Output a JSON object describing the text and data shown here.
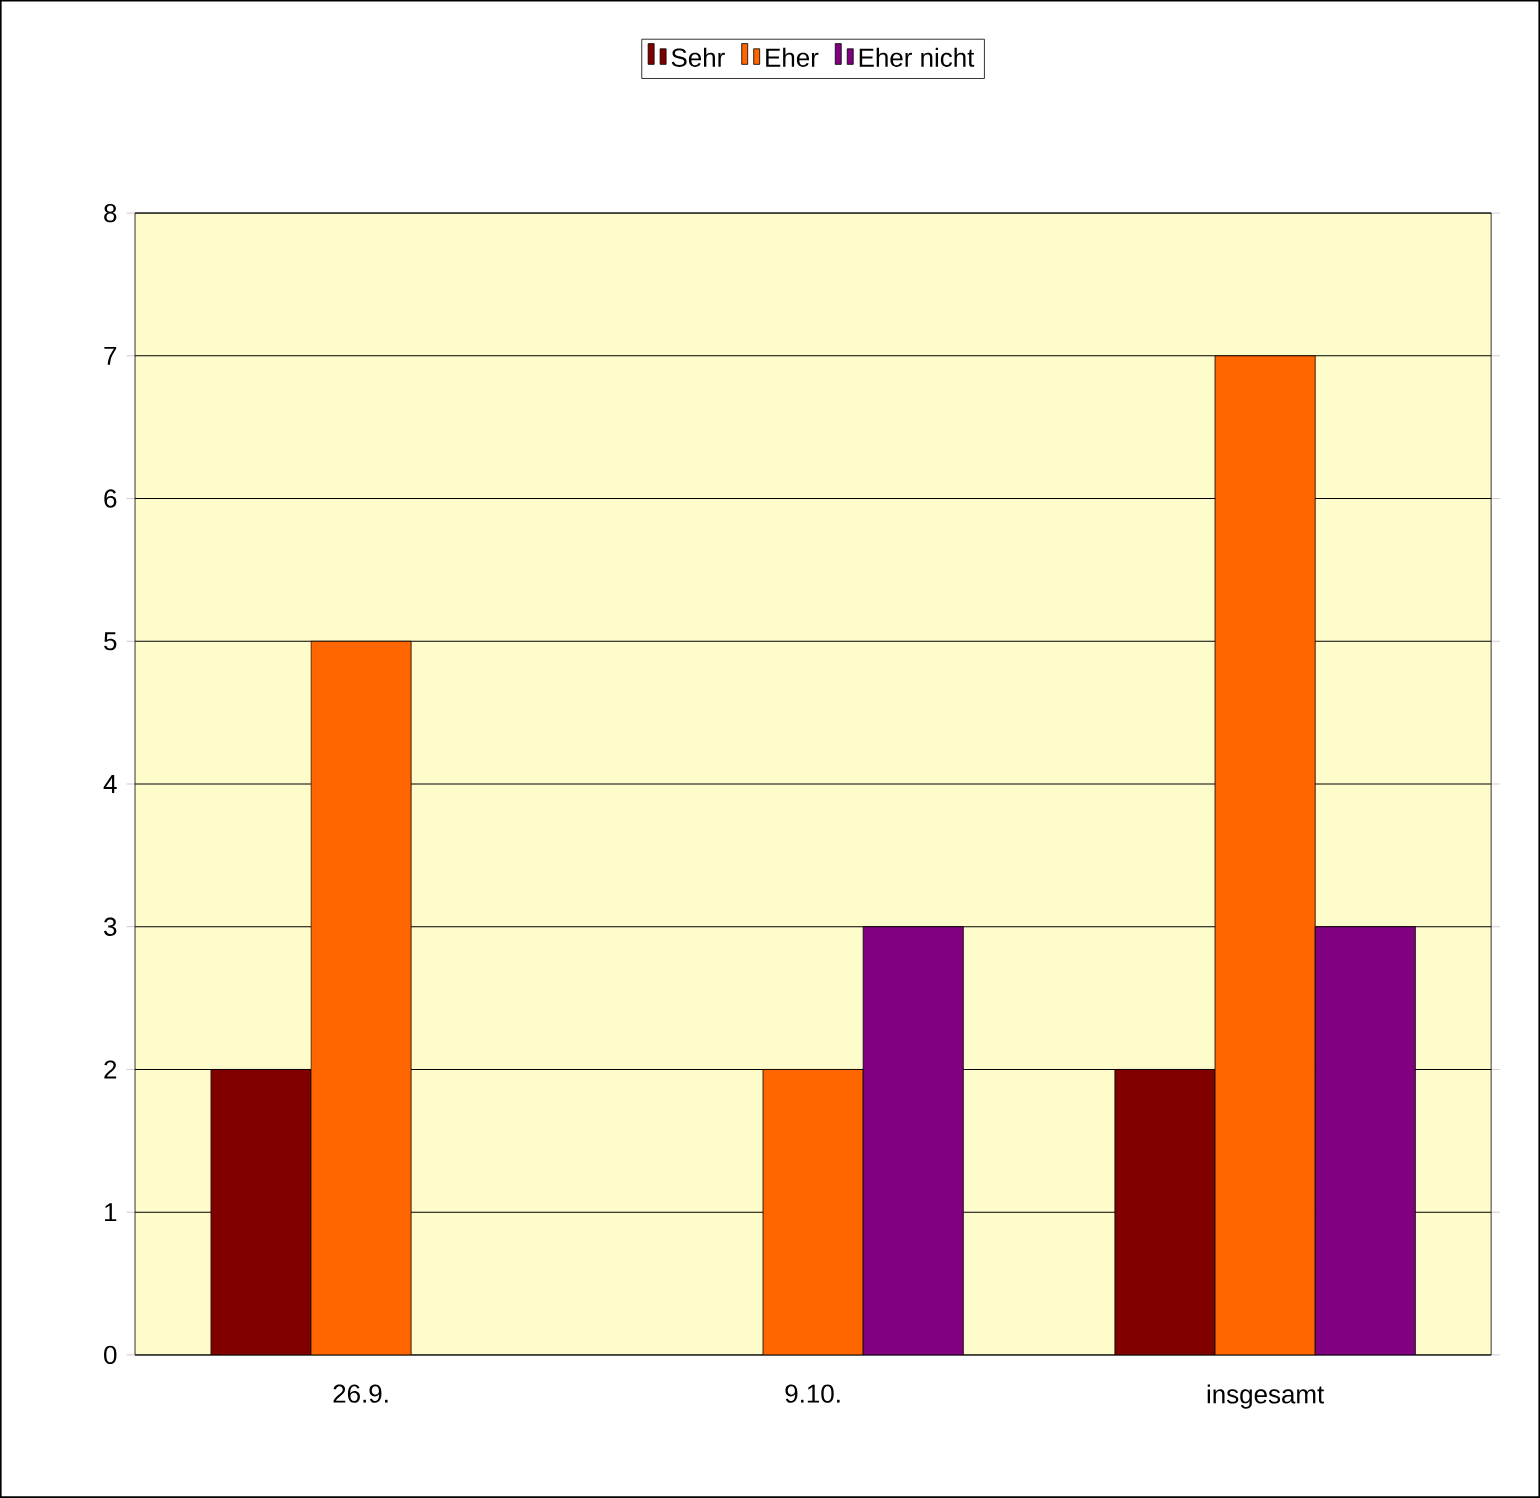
{
  "chart_data": {
    "type": "bar",
    "categories": [
      "26.9.",
      "9.10.",
      "insgesamt"
    ],
    "series": [
      {
        "name": "Sehr",
        "color": "#800000",
        "values": [
          2,
          null,
          2
        ]
      },
      {
        "name": "Eher",
        "color": "#ff6600",
        "values": [
          5,
          2,
          7
        ]
      },
      {
        "name": "Eher nicht",
        "color": "#800080",
        "values": [
          null,
          3,
          3
        ]
      }
    ],
    "ylim": [
      0,
      8
    ],
    "yticks": [
      0,
      1,
      2,
      3,
      4,
      5,
      6,
      7,
      8
    ],
    "grid": "y",
    "legend": "top"
  }
}
